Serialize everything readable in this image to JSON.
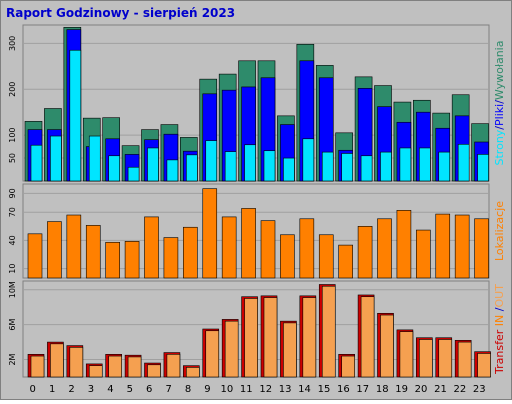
{
  "title": "Raport Godzinowy -   sierpień 2023",
  "colors": {
    "background": "#C0C0C0",
    "panel": "#C0C0C0",
    "grid": "#A0A0A0",
    "title": "#0000CC",
    "strony": "#2E8B6B",
    "pliki": "#0000FF",
    "wywolania": "#00E5FF",
    "lokalizacje": "#FF8000",
    "transfer_in": "#CC0000",
    "transfer_out": "#F5A050"
  },
  "chart_data": [
    {
      "type": "bar",
      "name": "top",
      "categories": [
        "0",
        "1",
        "2",
        "3",
        "4",
        "5",
        "6",
        "7",
        "8",
        "9",
        "10",
        "11",
        "12",
        "13",
        "14",
        "15",
        "16",
        "17",
        "18",
        "19",
        "20",
        "21",
        "22",
        "23"
      ],
      "y_ticks": [
        "50",
        "100",
        "200",
        "300"
      ],
      "y_tick_values": [
        50,
        100,
        200,
        300
      ],
      "ylim": [
        0,
        340
      ],
      "series": [
        {
          "values": [
            130,
            158,
            335,
            137,
            138,
            77,
            112,
            123,
            95,
            222,
            233,
            262,
            262,
            142,
            298,
            252,
            105,
            227,
            208,
            172,
            176,
            148,
            188,
            125
          ]
        },
        {
          "values": [
            112,
            112,
            330,
            75,
            92,
            58,
            90,
            102,
            65,
            190,
            198,
            205,
            225,
            123,
            262,
            225,
            67,
            202,
            162,
            128,
            150,
            115,
            142,
            85
          ]
        },
        {
          "values": [
            78,
            98,
            285,
            98,
            55,
            30,
            72,
            46,
            57,
            88,
            64,
            79,
            66,
            50,
            92,
            63,
            60,
            55,
            63,
            72,
            72,
            63,
            80,
            58
          ]
        }
      ],
      "right_label_parts": [
        {
          "text": "Strony",
          "color_key": "wywolania"
        },
        {
          "text": "/",
          "color_key": "title"
        },
        {
          "text": "Pliki",
          "color_key": "pliki"
        },
        {
          "text": "/",
          "color_key": "title"
        },
        {
          "text": "Wywołania",
          "color_key": "strony"
        }
      ]
    },
    {
      "type": "bar",
      "name": "middle",
      "categories": [
        "0",
        "1",
        "2",
        "3",
        "4",
        "5",
        "6",
        "7",
        "8",
        "9",
        "10",
        "11",
        "12",
        "13",
        "14",
        "15",
        "16",
        "17",
        "18",
        "19",
        "20",
        "21",
        "22",
        "23"
      ],
      "y_ticks": [
        "10",
        "40",
        "70",
        "90"
      ],
      "y_tick_values": [
        10,
        40,
        70,
        90
      ],
      "ylim": [
        0,
        100
      ],
      "series": [
        {
          "values": [
            47,
            60,
            67,
            56,
            38,
            39,
            65,
            43,
            54,
            95,
            65,
            74,
            61,
            46,
            63,
            46,
            35,
            55,
            63,
            72,
            51,
            68,
            67,
            63
          ]
        }
      ],
      "right_label_parts": [
        {
          "text": "Lokalizacje",
          "color_key": "lokalizacje"
        }
      ]
    },
    {
      "type": "bar",
      "name": "bottom",
      "categories": [
        "0",
        "1",
        "2",
        "3",
        "4",
        "5",
        "6",
        "7",
        "8",
        "9",
        "10",
        "11",
        "12",
        "13",
        "14",
        "15",
        "16",
        "17",
        "18",
        "19",
        "20",
        "21",
        "22",
        "23"
      ],
      "y_ticks": [
        "2M",
        "6M",
        "10M"
      ],
      "y_tick_values": [
        2,
        6,
        10
      ],
      "ylim": [
        0,
        11
      ],
      "series": [
        {
          "values": [
            2.6,
            4.0,
            3.6,
            1.5,
            2.6,
            2.5,
            1.6,
            2.8,
            1.3,
            5.5,
            6.6,
            9.2,
            9.3,
            6.4,
            9.3,
            10.6,
            2.6,
            9.4,
            7.3,
            5.4,
            4.5,
            4.5,
            4.2,
            2.9
          ]
        },
        {
          "values": [
            2.4,
            3.8,
            3.4,
            1.3,
            2.4,
            2.3,
            1.4,
            2.6,
            1.1,
            5.3,
            6.4,
            9.0,
            9.1,
            6.2,
            9.1,
            10.4,
            2.4,
            9.2,
            7.1,
            5.2,
            4.3,
            4.3,
            4.0,
            2.7
          ]
        }
      ],
      "right_label_parts": [
        {
          "text": "Transfer",
          "color_key": "transfer_in"
        },
        {
          "text": " IN ",
          "color_key": "lokalizacje"
        },
        {
          "text": "/",
          "color_key": "title"
        },
        {
          "text": "OUT",
          "color_key": "transfer_out"
        }
      ]
    }
  ]
}
